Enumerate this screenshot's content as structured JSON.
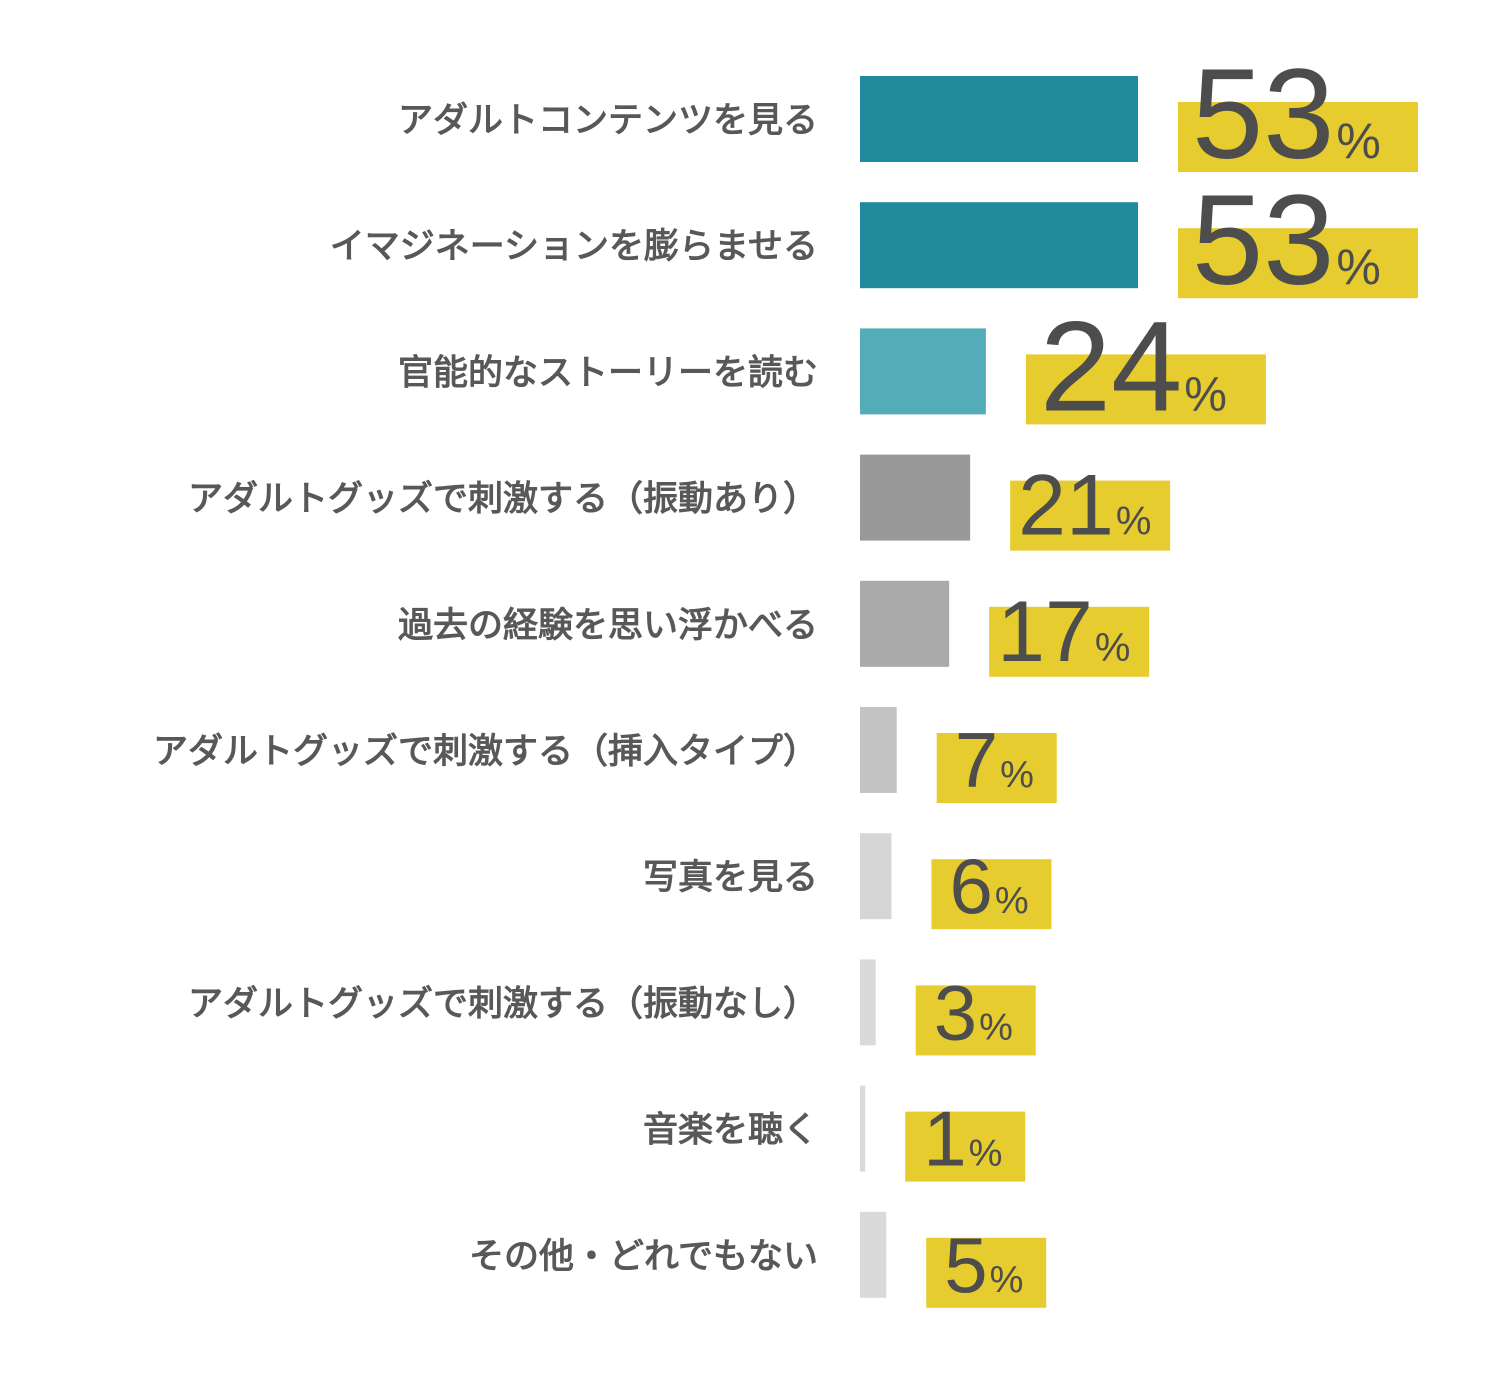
{
  "chart_data": {
    "type": "bar",
    "orientation": "horizontal",
    "categories": [
      "アダルトコンテンツを見る",
      "イマジネーションを膨らませる",
      "官能的なストーリーを読む",
      "アダルトグッズで刺激する（振動あり）",
      "過去の経験を思い浮かべる",
      "アダルトグッズで刺激する（挿入タイプ）",
      "写真を見る",
      "アダルトグッズで刺激する（振動なし）",
      "音楽を聴く",
      "その他・どれでもない"
    ],
    "values": [
      53,
      53,
      24,
      21,
      17,
      7,
      6,
      3,
      1,
      5
    ],
    "value_labels": [
      "53",
      "53",
      "24",
      "21",
      "17",
      "7",
      "6",
      "3",
      "1",
      "5"
    ],
    "unit": "%",
    "bar_colors": [
      "#1f8a9b",
      "#1f8a9b",
      "#54acb8",
      "#999999",
      "#aaaaaa",
      "#c3c3c3",
      "#d6d6d6",
      "#dadada",
      "#dadada",
      "#dadada"
    ],
    "highlight_color": "#e6cc2e",
    "text_color": "#595757",
    "number_color": "#4d4d4d",
    "xlim": [
      0,
      53
    ],
    "grid": false,
    "legend": "none"
  }
}
